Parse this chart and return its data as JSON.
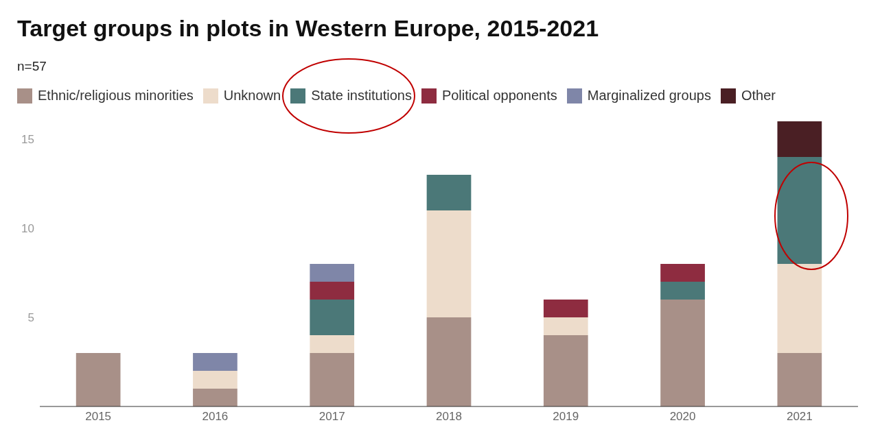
{
  "chart_data": {
    "type": "bar",
    "title": "Target groups in plots in Western Europe, 2015-2021",
    "subtitle": "n=57",
    "categories": [
      "2015",
      "2016",
      "2017",
      "2018",
      "2019",
      "2020",
      "2021"
    ],
    "stacked": true,
    "series": [
      {
        "name": "Ethnic/religious minorities",
        "color": "#a89088",
        "values": [
          3,
          1,
          3,
          5,
          4,
          6,
          3
        ]
      },
      {
        "name": "Unknown",
        "color": "#eddccb",
        "values": [
          0,
          1,
          1,
          6,
          1,
          0,
          5
        ]
      },
      {
        "name": "State institutions",
        "color": "#4b7878",
        "values": [
          0,
          0,
          2,
          2,
          0,
          1,
          6
        ]
      },
      {
        "name": "Political opponents",
        "color": "#8e2c40",
        "values": [
          0,
          0,
          1,
          0,
          1,
          1,
          0
        ]
      },
      {
        "name": "Marginalized groups",
        "color": "#7f86a8",
        "values": [
          0,
          1,
          1,
          0,
          0,
          0,
          0
        ]
      },
      {
        "name": "Other",
        "color": "#4a1f24",
        "values": [
          0,
          0,
          0,
          0,
          0,
          0,
          2
        ]
      }
    ],
    "ylim": [
      0,
      16
    ],
    "yticks": [
      5,
      10,
      15
    ],
    "grid": false,
    "legend": "top left"
  }
}
